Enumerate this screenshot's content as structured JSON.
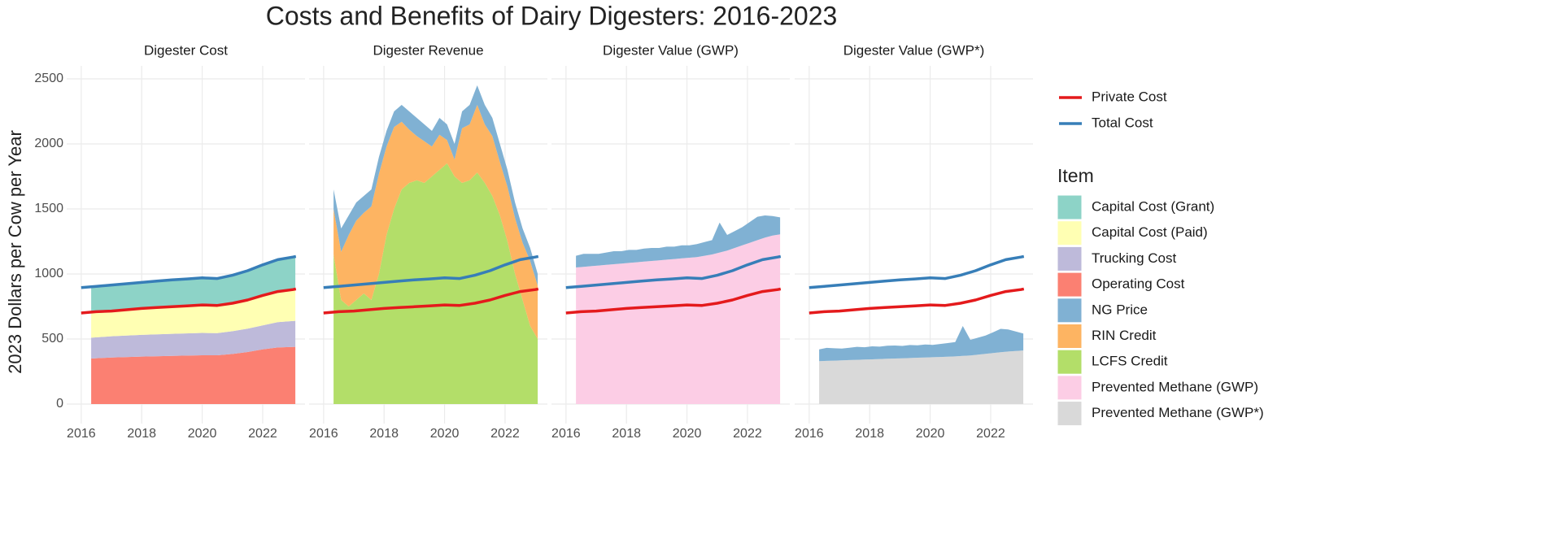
{
  "title": "Costs and Benefits of Dairy Digesters: 2016-2023",
  "ylabel": "2023 Dollars per Cow per Year",
  "legend_title": "Item",
  "xlim": [
    2015.52,
    2023.4
  ],
  "xticks": [
    2016,
    2018,
    2020,
    2022
  ],
  "ylim": [
    -150,
    2600
  ],
  "yticks": [
    0,
    500,
    1000,
    1500,
    2000,
    2500
  ],
  "grid": true,
  "lines": {
    "type": "line",
    "x": [
      2016,
      2016.5,
      2017,
      2017.5,
      2018,
      2018.5,
      2019,
      2019.5,
      2020,
      2020.5,
      2021,
      2021.5,
      2022,
      2022.5,
      2023,
      2023.1
    ],
    "series": [
      {
        "name": "Private Cost",
        "color": "#e41a1c",
        "values": [
          700,
          710,
          715,
          725,
          735,
          742,
          748,
          755,
          762,
          758,
          775,
          800,
          835,
          865,
          880,
          885
        ]
      },
      {
        "name": "Total Cost",
        "color": "#377eb8",
        "values": [
          895,
          905,
          915,
          925,
          935,
          945,
          955,
          962,
          970,
          965,
          990,
          1025,
          1070,
          1110,
          1130,
          1135
        ]
      }
    ]
  },
  "chart_data": [
    {
      "type": "area",
      "stacked": true,
      "title": "Digester Cost",
      "x": [
        2016.33,
        2017,
        2018,
        2019,
        2020,
        2020.5,
        2021,
        2021.5,
        2022,
        2022.5,
        2023.08
      ],
      "series": [
        {
          "name": "Capital Cost (Grant)",
          "color": "#8dd3c7",
          "values": [
            195,
            200,
            200,
            207,
            208,
            207,
            215,
            225,
            235,
            245,
            250
          ]
        },
        {
          "name": "Capital Cost (Paid)",
          "color": "#ffffb3",
          "values": [
            195,
            194,
            203,
            208,
            215,
            213,
            215,
            220,
            230,
            235,
            243
          ]
        },
        {
          "name": "Trucking Cost",
          "color": "#bebada",
          "values": [
            160,
            163,
            167,
            170,
            172,
            170,
            175,
            180,
            185,
            195,
            200
          ]
        },
        {
          "name": "Operating Cost",
          "color": "#fb8072",
          "values": [
            350,
            358,
            365,
            370,
            375,
            375,
            385,
            400,
            420,
            435,
            440
          ]
        }
      ]
    },
    {
      "type": "area",
      "stacked": true,
      "title": "Digester Revenue",
      "x": [
        2016.33,
        2016.58,
        2016.83,
        2017.08,
        2017.33,
        2017.58,
        2017.83,
        2018.08,
        2018.33,
        2018.58,
        2018.83,
        2019.08,
        2019.33,
        2019.58,
        2019.83,
        2020.08,
        2020.33,
        2020.58,
        2020.83,
        2021.08,
        2021.33,
        2021.58,
        2021.83,
        2022.08,
        2022.33,
        2022.58,
        2022.83,
        2023.08
      ],
      "series": [
        {
          "name": "NG Price",
          "color": "#80b1d3",
          "values": [
            150,
            180,
            150,
            140,
            130,
            130,
            130,
            120,
            120,
            130,
            140,
            140,
            130,
            120,
            130,
            120,
            120,
            130,
            150,
            150,
            150,
            140,
            140,
            130,
            120,
            110,
            100,
            90
          ]
        },
        {
          "name": "RIN Credit",
          "color": "#fdb462",
          "values": [
            350,
            370,
            550,
            610,
            620,
            720,
            770,
            680,
            630,
            520,
            410,
            340,
            320,
            230,
            270,
            180,
            130,
            420,
            430,
            520,
            450,
            460,
            410,
            420,
            430,
            440,
            500,
            410
          ]
        },
        {
          "name": "LCFS Credit",
          "color": "#b3de69",
          "values": [
            1150,
            800,
            750,
            800,
            850,
            800,
            1000,
            1300,
            1500,
            1650,
            1700,
            1720,
            1700,
            1750,
            1800,
            1850,
            1750,
            1700,
            1720,
            1780,
            1700,
            1600,
            1450,
            1250,
            1000,
            800,
            600,
            500
          ]
        }
      ]
    },
    {
      "type": "area",
      "stacked": true,
      "title": "Digester Value (GWP)",
      "x": [
        2016.33,
        2016.58,
        2016.83,
        2017.08,
        2017.33,
        2017.58,
        2017.83,
        2018.08,
        2018.33,
        2018.58,
        2018.83,
        2019.08,
        2019.33,
        2019.58,
        2019.83,
        2020.08,
        2020.33,
        2020.58,
        2020.83,
        2021.08,
        2021.33,
        2021.58,
        2021.83,
        2022.08,
        2022.33,
        2022.58,
        2022.83,
        2023.08
      ],
      "series": [
        {
          "name": "NG Price",
          "color": "#80b1d3",
          "values": [
            90,
            100,
            95,
            90,
            95,
            100,
            95,
            100,
            95,
            100,
            100,
            95,
            100,
            95,
            100,
            95,
            100,
            105,
            110,
            230,
            120,
            130,
            140,
            160,
            180,
            170,
            150,
            130
          ]
        },
        {
          "name": "Prevented Methane (GWP)",
          "color": "#fccde5",
          "values": [
            1050,
            1055,
            1060,
            1065,
            1070,
            1075,
            1080,
            1085,
            1090,
            1095,
            1100,
            1105,
            1110,
            1115,
            1120,
            1125,
            1130,
            1140,
            1150,
            1165,
            1180,
            1200,
            1220,
            1240,
            1260,
            1280,
            1295,
            1305
          ]
        }
      ]
    },
    {
      "type": "area",
      "stacked": true,
      "title": "Digester Value (GWP*)",
      "x": [
        2016.33,
        2016.58,
        2016.83,
        2017.08,
        2017.33,
        2017.58,
        2017.83,
        2018.08,
        2018.33,
        2018.58,
        2018.83,
        2019.08,
        2019.33,
        2019.58,
        2019.83,
        2020.08,
        2020.33,
        2020.58,
        2020.83,
        2021.08,
        2021.33,
        2021.58,
        2021.83,
        2022.08,
        2022.33,
        2022.58,
        2022.83,
        2023.08
      ],
      "series": [
        {
          "name": "NG Price",
          "color": "#80b1d3",
          "values": [
            90,
            100,
            95,
            90,
            95,
            100,
            95,
            100,
            95,
            100,
            100,
            95,
            100,
            95,
            100,
            95,
            100,
            105,
            110,
            230,
            120,
            130,
            140,
            160,
            180,
            170,
            150,
            130
          ]
        },
        {
          "name": "Prevented Methane (GWP*)",
          "color": "#d9d9d9",
          "values": [
            330,
            332,
            334,
            336,
            338,
            340,
            342,
            344,
            346,
            348,
            350,
            352,
            354,
            356,
            358,
            360,
            362,
            364,
            366,
            370,
            374,
            380,
            386,
            392,
            398,
            404,
            408,
            412
          ]
        }
      ]
    }
  ]
}
